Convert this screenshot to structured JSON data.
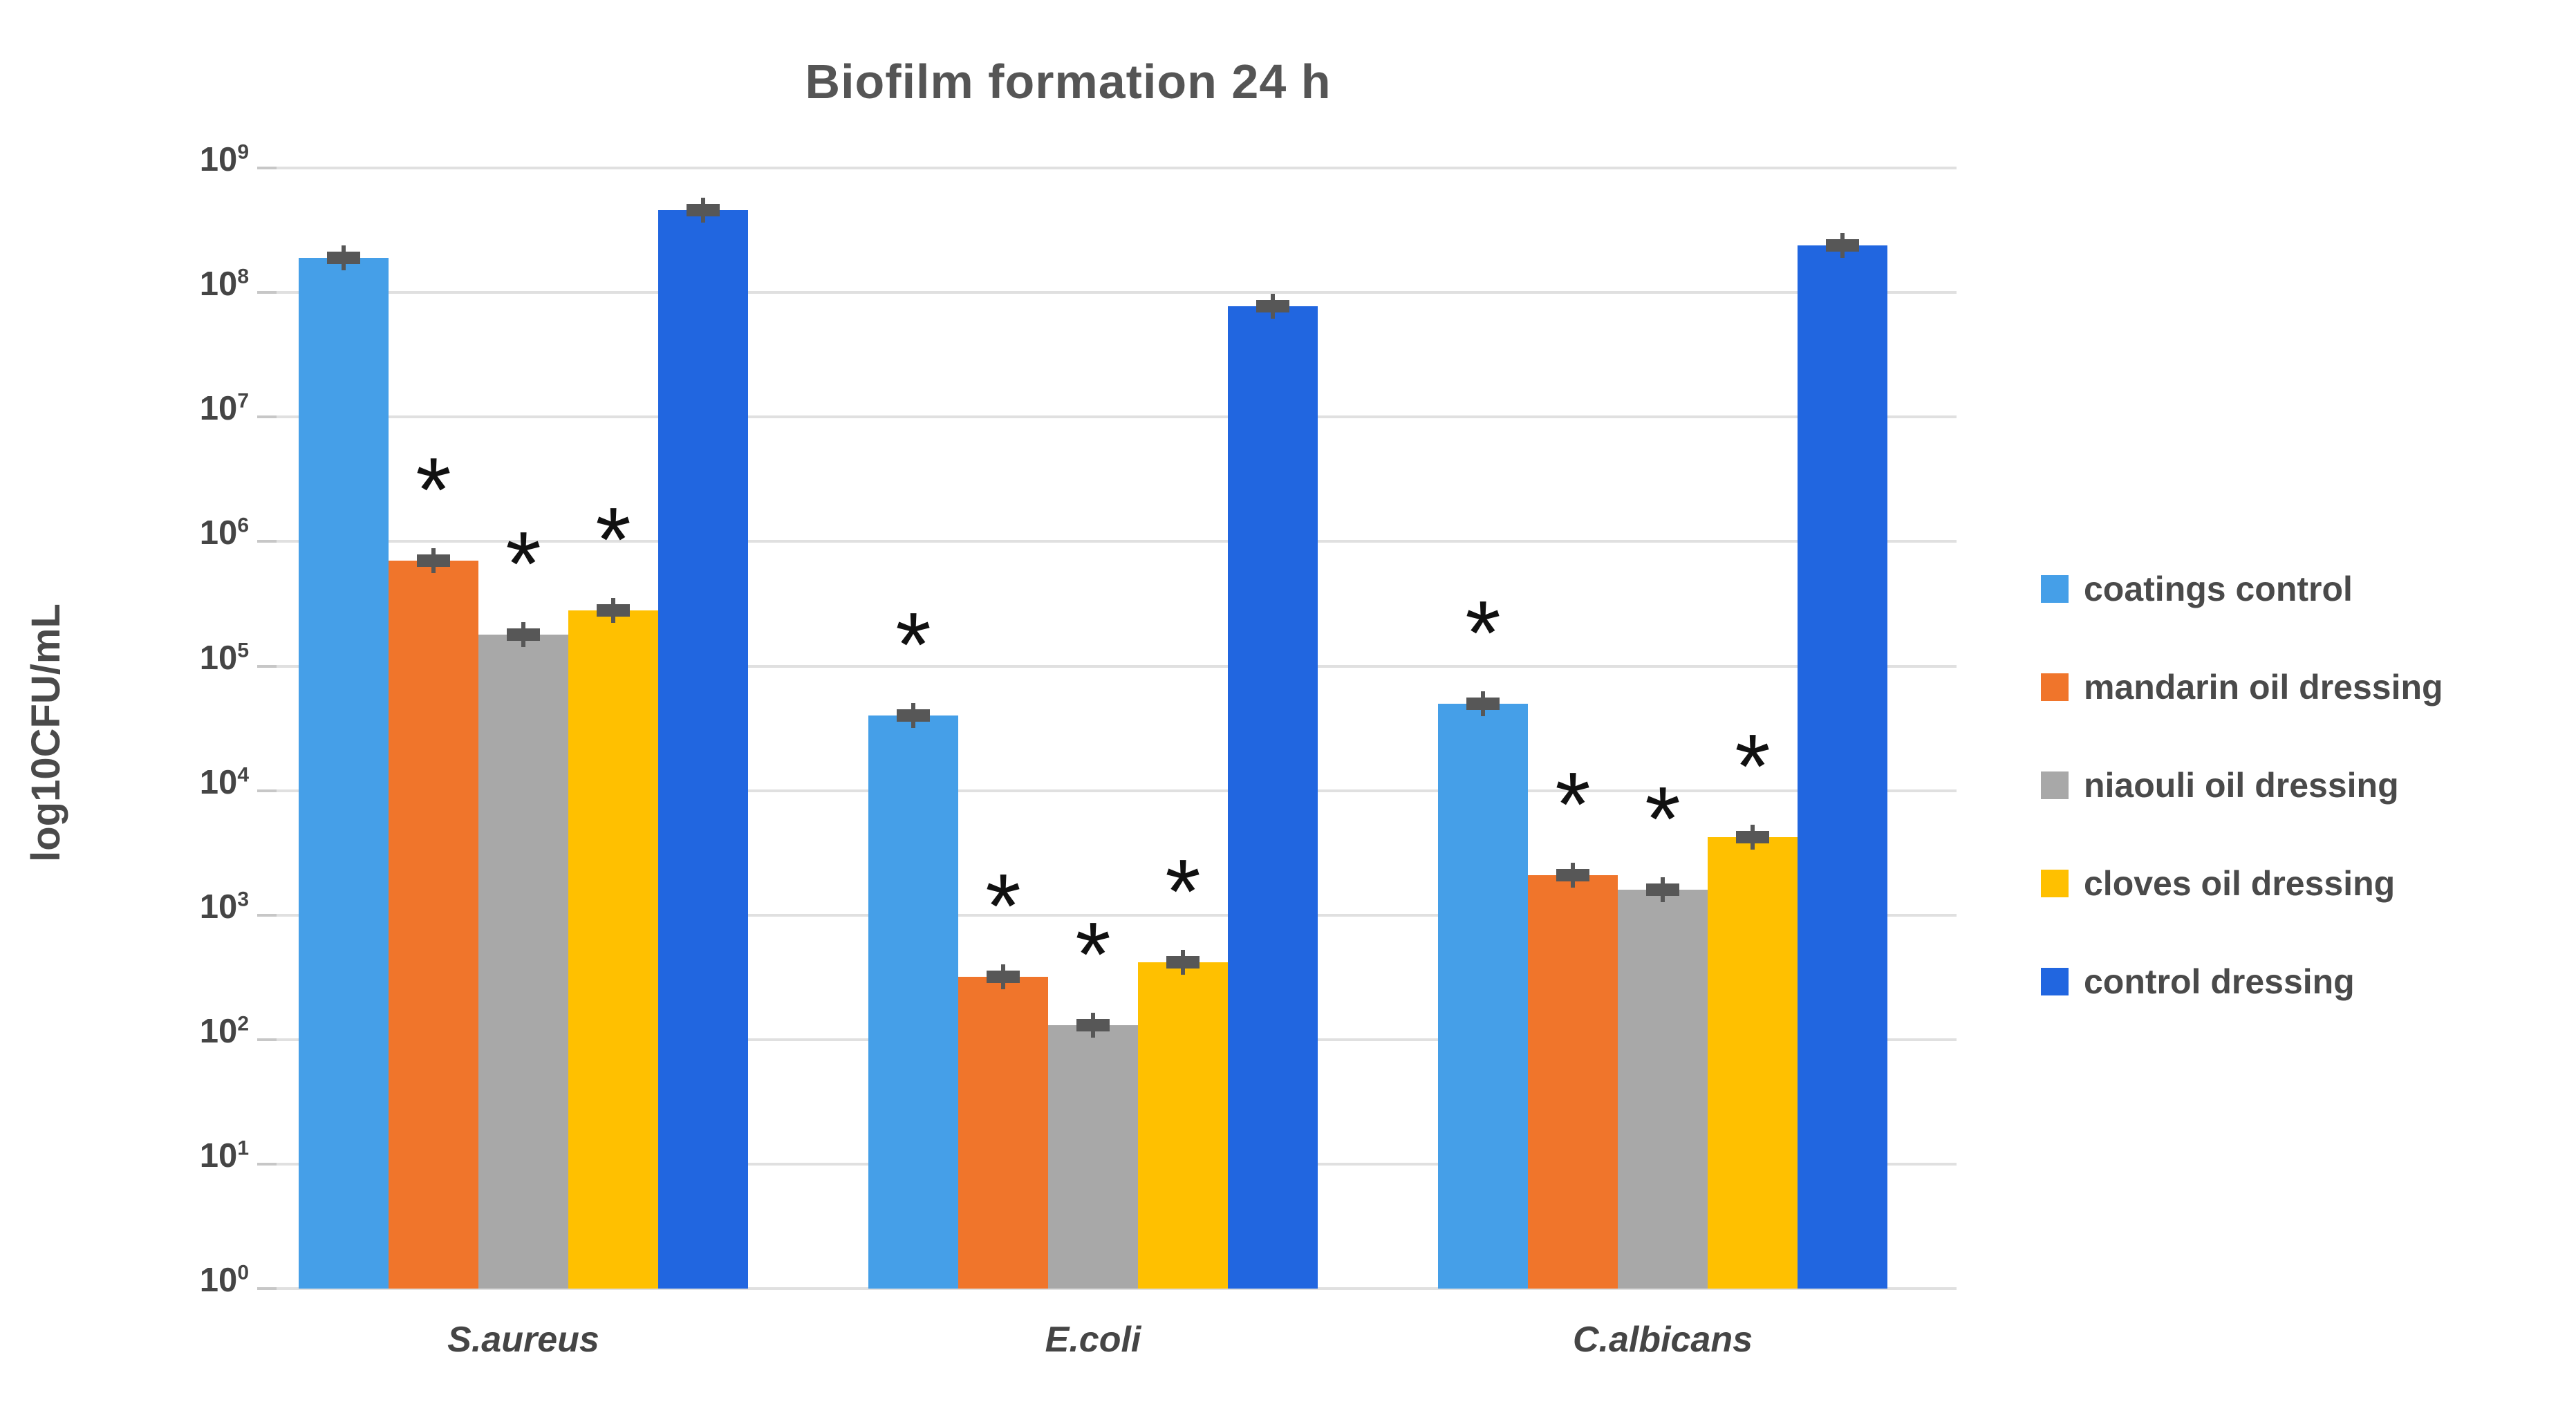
{
  "title": "Biofilm formation 24 h",
  "chart_data": {
    "type": "bar",
    "title": "Biofilm formation 24 h",
    "xlabel": "",
    "ylabel": "log10CFU/mL",
    "yscale": "log",
    "ylim": [
      1,
      1000000000
    ],
    "ytick_exponents": [
      0,
      1,
      2,
      3,
      4,
      5,
      6,
      7,
      8,
      9
    ],
    "grid": true,
    "legend_position": "right",
    "error_bars": true,
    "significance_symbol": "*",
    "categories": [
      "S.aureus",
      "E.coli",
      "C.albicans"
    ],
    "series": [
      {
        "name": "coatings control",
        "color": "#459FE8",
        "values": [
          190000000,
          40000,
          50000
        ],
        "significant": [
          false,
          true,
          true
        ]
      },
      {
        "name": "mandarin oil dressing",
        "color": "#F0752B",
        "values": [
          700000,
          320,
          2100
        ],
        "significant": [
          true,
          true,
          true
        ]
      },
      {
        "name": "niaouli oil dressing",
        "color": "#A8A8A8",
        "values": [
          180000,
          130,
          1600
        ],
        "significant": [
          true,
          true,
          true
        ]
      },
      {
        "name": "cloves oil dressing",
        "color": "#FFC000",
        "values": [
          280000,
          420,
          4200
        ],
        "significant": [
          true,
          true,
          true
        ]
      },
      {
        "name": "control dressing",
        "color": "#2166E0",
        "values": [
          460000000,
          78000000,
          240000000
        ],
        "significant": [
          false,
          false,
          false
        ]
      }
    ]
  },
  "layout_colors": {
    "gridline": "#e0e0e0",
    "axis_text": "#454545",
    "title_text": "#555555",
    "error_cap": "#575757",
    "asterisk": "#111111"
  }
}
